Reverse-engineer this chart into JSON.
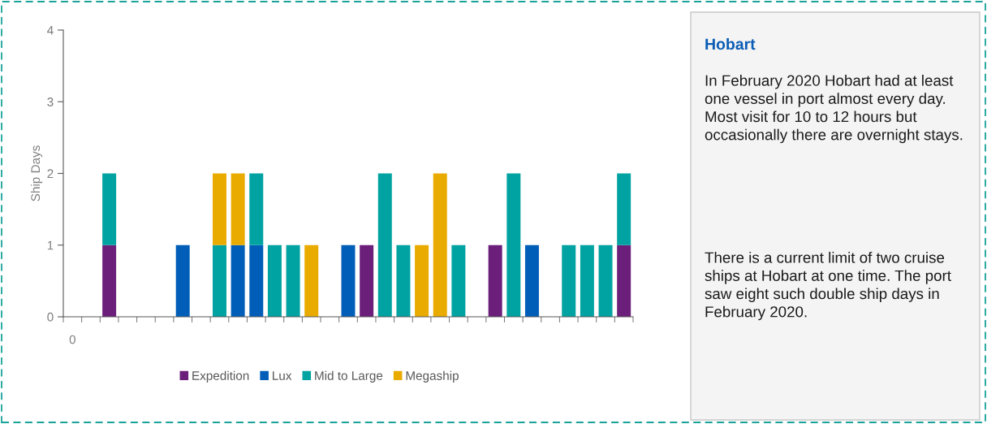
{
  "chart_data": [
    {
      "type": "bar",
      "stacked": true,
      "ylabel": "Ship Days",
      "ylim": [
        0,
        4
      ],
      "yticks": [
        0,
        1,
        2,
        3,
        4
      ],
      "grid": false,
      "legend": "bottom",
      "categories": [
        "0",
        null,
        null,
        null,
        null,
        null,
        null,
        null,
        null,
        null,
        null,
        null,
        null,
        null,
        null,
        null,
        null,
        null,
        null,
        null,
        null,
        null,
        null,
        null,
        null,
        null,
        null,
        null,
        null,
        null,
        null
      ],
      "series": [
        {
          "name": "Expedition",
          "color": "#6b1f7b",
          "values": [
            null,
            null,
            1,
            null,
            null,
            null,
            null,
            null,
            null,
            null,
            null,
            null,
            null,
            null,
            null,
            null,
            1,
            null,
            null,
            null,
            null,
            null,
            null,
            1,
            null,
            null,
            null,
            null,
            null,
            null,
            1
          ]
        },
        {
          "name": "Lux",
          "color": "#005eb8",
          "values": [
            null,
            null,
            null,
            null,
            null,
            null,
            1,
            null,
            null,
            1,
            1,
            null,
            null,
            null,
            null,
            1,
            null,
            null,
            null,
            null,
            null,
            null,
            null,
            null,
            null,
            1,
            null,
            null,
            null,
            null,
            null
          ]
        },
        {
          "name": "Mid to Large",
          "color": "#00a3a1",
          "values": [
            null,
            null,
            1,
            null,
            null,
            null,
            null,
            null,
            1,
            null,
            1,
            1,
            1,
            null,
            null,
            null,
            null,
            2,
            1,
            null,
            null,
            1,
            null,
            null,
            2,
            null,
            null,
            1,
            1,
            1,
            1
          ]
        },
        {
          "name": "Megaship",
          "color": "#eaab00",
          "values": [
            null,
            null,
            null,
            null,
            null,
            null,
            null,
            null,
            1,
            1,
            null,
            null,
            null,
            1,
            null,
            null,
            null,
            null,
            null,
            1,
            2,
            null,
            null,
            null,
            null,
            null,
            null,
            null,
            null,
            null,
            null
          ]
        }
      ]
    },
    {
      "type": "other",
      "title": "Hobart",
      "annotations": [
        "In February 2020 Hobart had at least one vessel in port almost every day. Most visit for 10 to 12 hours but occasionally there are overnight stays.",
        "There is a current limit of two cruise ships at Hobart at one time. The port saw eight such double ship days in February 2020."
      ]
    }
  ]
}
